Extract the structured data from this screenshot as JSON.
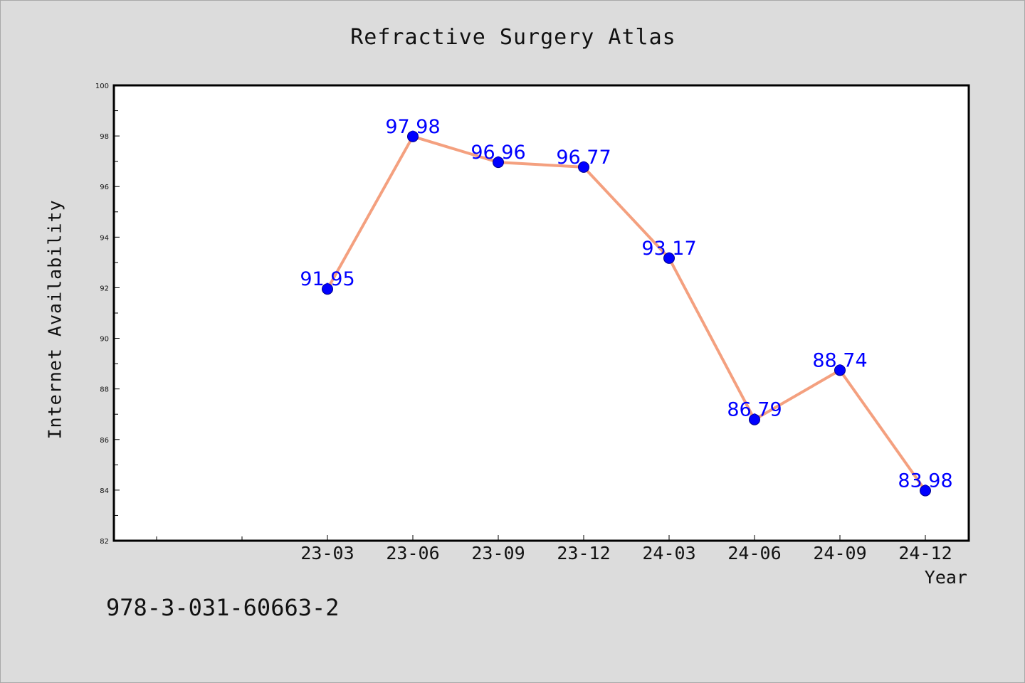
{
  "figure": {
    "isbn": "978-3-031-60663-2"
  },
  "colors": {
    "line": "#f4a07f",
    "marker": "#0000ff",
    "data_label": "#0000ff",
    "plot_bg": "#ffffff",
    "page_bg": "#dcdcdc"
  },
  "chart_data": {
    "type": "line",
    "title": "Refractive Surgery Atlas",
    "xlabel": "Year",
    "ylabel": "Internet Availability",
    "categories": [
      "23-03",
      "23-06",
      "23-09",
      "23-12",
      "24-03",
      "24-06",
      "24-09",
      "24-12"
    ],
    "series": [
      {
        "values": [
          91.95,
          97.98,
          96.96,
          96.77,
          93.17,
          86.79,
          88.74,
          83.98
        ],
        "value_labels": [
          "91.95",
          "97.98",
          "96.96",
          "96.77",
          "93.17",
          "86.79",
          "88.74",
          "83.98"
        ]
      }
    ],
    "ylim": [
      82,
      100
    ],
    "yticks": [
      82,
      84,
      86,
      88,
      90,
      92,
      94,
      96,
      98,
      100
    ],
    "ytick_labels": [
      "82",
      "84",
      "86",
      "88",
      "90",
      "92",
      "94",
      "96",
      "98",
      "100"
    ],
    "grid": false,
    "legend": "none"
  }
}
